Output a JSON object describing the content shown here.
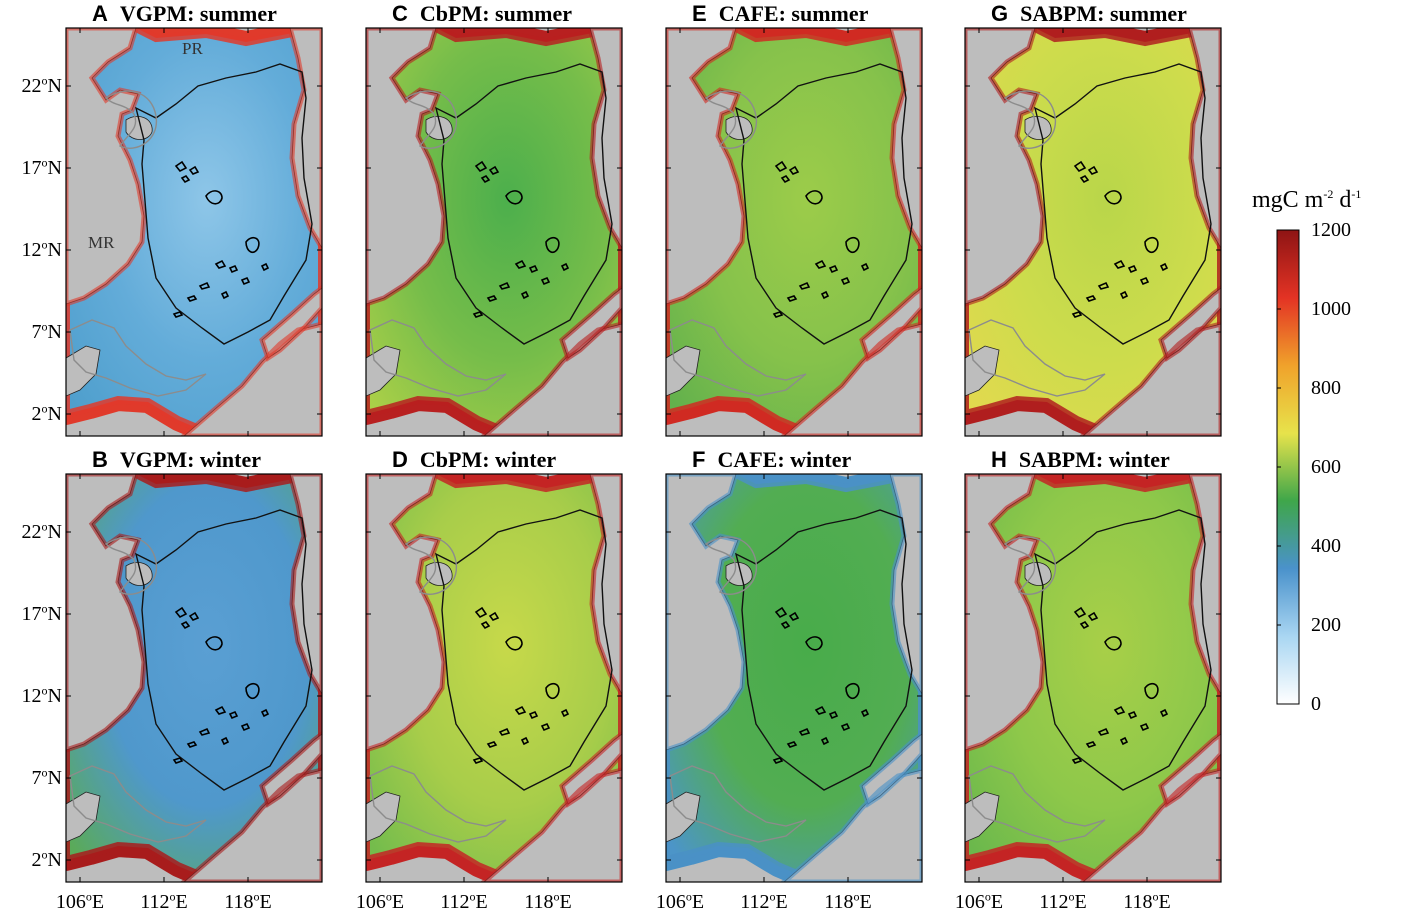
{
  "panels": [
    {
      "letter": "A",
      "title": "VGPM: summer",
      "model": "VGPM",
      "season": "summer",
      "basin": "#8ec6e8",
      "mid": "#63acd9",
      "shelf": "#4f9fcd",
      "coast": "#e03a2b"
    },
    {
      "letter": "B",
      "title": "VGPM: winter",
      "model": "VGPM",
      "season": "winter",
      "basin": "#5a9fd3",
      "mid": "#4f98cc",
      "shelf": "#5aaa5a",
      "coast": "#a81c1c"
    },
    {
      "letter": "C",
      "title": "CbPM: summer",
      "model": "CbPM",
      "season": "summer",
      "basin": "#4caf4c",
      "mid": "#76bd4a",
      "shelf": "#a9cf48",
      "coast": "#b82020"
    },
    {
      "letter": "D",
      "title": "CbPM: winter",
      "model": "CbPM",
      "season": "winter",
      "basin": "#c7d94a",
      "mid": "#a8cd4a",
      "shelf": "#74bc4c",
      "coast": "#c42424"
    },
    {
      "letter": "E",
      "title": "CAFE: summer",
      "model": "CAFE",
      "season": "summer",
      "basin": "#9ccc4a",
      "mid": "#86c24b",
      "shelf": "#63b14c",
      "coast": "#d02a22"
    },
    {
      "letter": "F",
      "title": "CAFE: winter",
      "model": "CAFE",
      "season": "winter",
      "basin": "#48ac4a",
      "mid": "#52ad52",
      "shelf": "#4c95c8",
      "coast": "#4a91c6"
    },
    {
      "letter": "G",
      "title": "SABPM: summer",
      "model": "SABPM",
      "season": "summer",
      "basin": "#b9d64a",
      "mid": "#cddc4c",
      "shelf": "#e1d94e",
      "coast": "#b01e1e"
    },
    {
      "letter": "H",
      "title": "SABPM: winter",
      "model": "SABPM",
      "season": "winter",
      "basin": "#a8cf48",
      "mid": "#8ec84a",
      "shelf": "#6bb84c",
      "coast": "#c42424"
    }
  ],
  "lat_ticks": [
    {
      "deg": "22",
      "unit": "o",
      "hem": "N"
    },
    {
      "deg": "17",
      "unit": "o",
      "hem": "N"
    },
    {
      "deg": "12",
      "unit": "o",
      "hem": "N"
    },
    {
      "deg": "7",
      "unit": "o",
      "hem": "N"
    },
    {
      "deg": "2",
      "unit": "o",
      "hem": "N"
    }
  ],
  "lon_ticks": [
    {
      "deg": "106",
      "unit": "o",
      "hem": "E"
    },
    {
      "deg": "112",
      "unit": "o",
      "hem": "E"
    },
    {
      "deg": "118",
      "unit": "o",
      "hem": "E"
    }
  ],
  "map_labels": {
    "pearl_river": "PR",
    "mekong_river": "MR"
  },
  "colorbar": {
    "title_main": "mgC m",
    "title_exp1": "-2",
    "title_mid": " d",
    "title_exp2": "-1",
    "ticks": [
      "1200",
      "1000",
      "800",
      "600",
      "400",
      "200",
      "0"
    ],
    "range": [
      0,
      1200
    ],
    "stops": [
      "#ffffff",
      "#a9d6f2",
      "#4a92cb",
      "#3fa64a",
      "#e7e34b",
      "#f0a22b",
      "#e33324",
      "#8e1414"
    ]
  },
  "colors": {
    "land": "#bdbdbd",
    "frame": "#000000",
    "isobath_deep": "#111111",
    "isobath_shallow": "#8c8c8c"
  }
}
